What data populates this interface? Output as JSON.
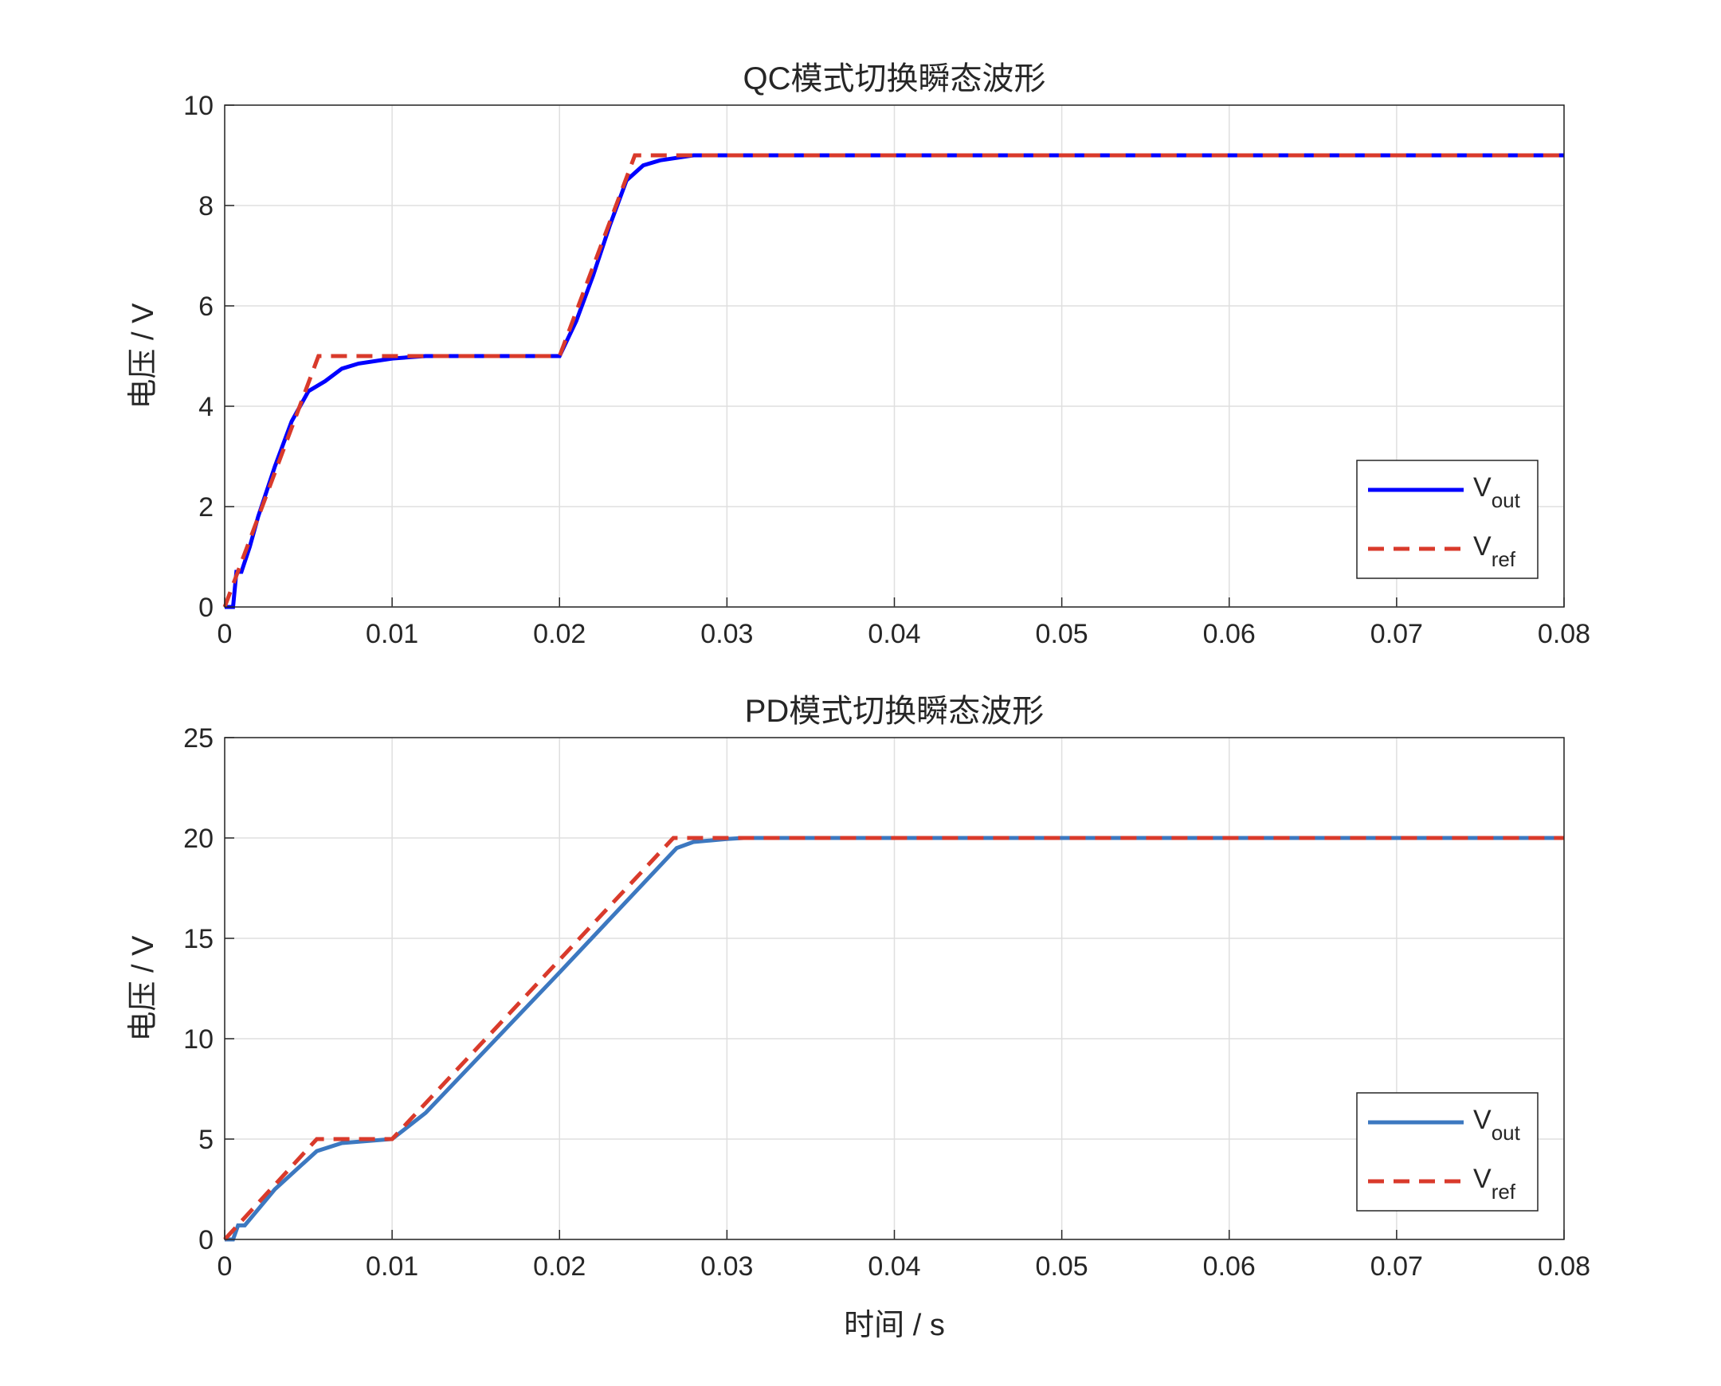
{
  "chart_data": [
    {
      "type": "line",
      "title": "QC模式切换瞬态波形",
      "ylabel": "电压 / V",
      "xlim": [
        0,
        0.08
      ],
      "xticks": [
        0,
        0.01,
        0.02,
        0.03,
        0.04,
        0.05,
        0.06,
        0.07,
        0.08
      ],
      "ylim": [
        0,
        10
      ],
      "yticks": [
        0,
        2,
        4,
        6,
        8,
        10
      ],
      "grid": true,
      "legend": "southeast",
      "series": [
        {
          "name": "Vout",
          "color": "#0000ff",
          "dash": false,
          "x": [
            0,
            0.0005,
            0.0007,
            0.001,
            0.0015,
            0.002,
            0.003,
            0.004,
            0.005,
            0.006,
            0.007,
            0.008,
            0.01,
            0.012,
            0.02,
            0.021,
            0.022,
            0.023,
            0.024,
            0.025,
            0.026,
            0.027,
            0.028,
            0.03,
            0.08
          ],
          "values": [
            0,
            0,
            0.7,
            0.7,
            1.2,
            1.8,
            2.8,
            3.7,
            4.3,
            4.5,
            4.75,
            4.85,
            4.95,
            5,
            5,
            5.7,
            6.6,
            7.6,
            8.5,
            8.8,
            8.9,
            8.95,
            9,
            9,
            9
          ]
        },
        {
          "name": "Vref",
          "color": "#d93a2b",
          "dash": true,
          "x": [
            0,
            0.0056,
            0.02,
            0.0245,
            0.08
          ],
          "values": [
            0,
            5,
            5,
            9,
            9
          ]
        }
      ]
    },
    {
      "type": "line",
      "title": "PD模式切换瞬态波形",
      "ylabel": "电压 / V",
      "xlabel": "时间 / s",
      "xlim": [
        0,
        0.08
      ],
      "xticks": [
        0,
        0.01,
        0.02,
        0.03,
        0.04,
        0.05,
        0.06,
        0.07,
        0.08
      ],
      "ylim": [
        0,
        25
      ],
      "yticks": [
        0,
        5,
        10,
        15,
        20,
        25
      ],
      "grid": true,
      "legend": "southeast",
      "series": [
        {
          "name": "Vout",
          "color": "#3c78c0",
          "dash": false,
          "x": [
            0,
            0.0005,
            0.0008,
            0.0012,
            0.003,
            0.0055,
            0.007,
            0.01,
            0.012,
            0.02,
            0.027,
            0.028,
            0.03,
            0.031,
            0.08
          ],
          "values": [
            0,
            0,
            0.7,
            0.7,
            2.5,
            4.4,
            4.8,
            5,
            6.3,
            13.3,
            19.5,
            19.8,
            19.95,
            20,
            20
          ]
        },
        {
          "name": "Vref",
          "color": "#d93a2b",
          "dash": true,
          "x": [
            0,
            0.0055,
            0.01,
            0.0268,
            0.08
          ],
          "values": [
            0,
            5,
            5,
            20,
            20
          ]
        }
      ]
    }
  ]
}
